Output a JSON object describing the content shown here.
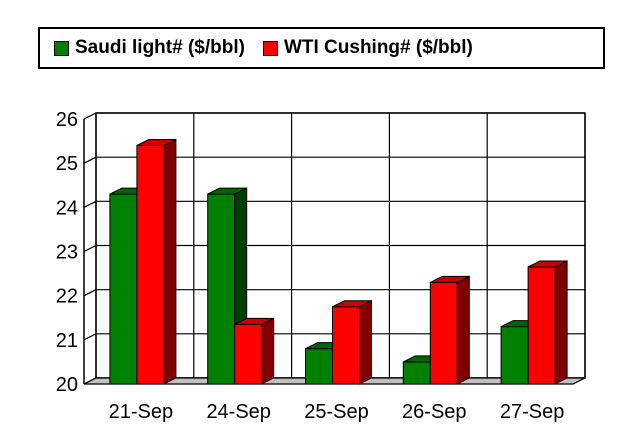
{
  "chart_data": {
    "type": "bar",
    "title": "",
    "xlabel": "",
    "ylabel": "",
    "categories": [
      "21-Sep",
      "24-Sep",
      "25-Sep",
      "26-Sep",
      "27-Sep"
    ],
    "series": [
      {
        "name": "Saudi light# ($/bbl)",
        "values": [
          24.3,
          24.3,
          20.8,
          20.5,
          21.3
        ],
        "color": "#008000"
      },
      {
        "name": "WTI Cushing# ($/bbl)",
        "values": [
          25.4,
          21.35,
          21.75,
          22.3,
          22.65
        ],
        "color": "#ff0000"
      }
    ],
    "ylim": [
      20,
      26
    ],
    "yticks": [
      20,
      21,
      22,
      23,
      24,
      25,
      26
    ],
    "grid": true,
    "legend_position": "top"
  }
}
